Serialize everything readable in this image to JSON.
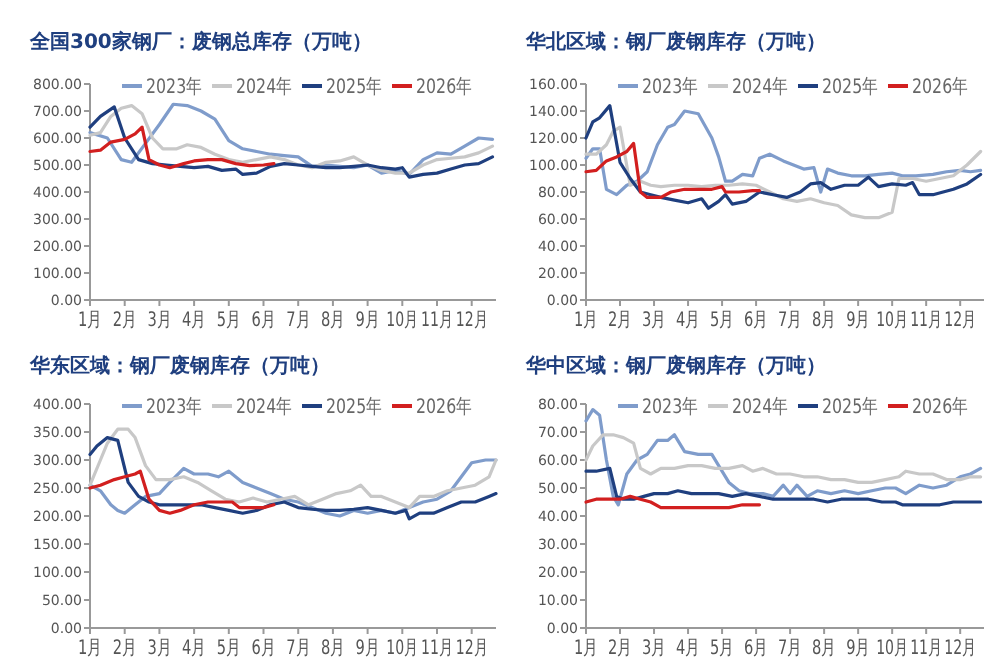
{
  "chart_data": [
    {
      "type": "line",
      "title": "全国300家钢厂：废钢总库存（万吨）",
      "legend": "top",
      "xlim": [
        1,
        12.7
      ],
      "ylim": [
        0,
        800
      ],
      "xticks": [
        {
          "value": 1,
          "label": "1月"
        },
        {
          "value": 2,
          "label": "2月"
        },
        {
          "value": 3,
          "label": "3月"
        },
        {
          "value": 4,
          "label": "4月"
        },
        {
          "value": 5,
          "label": "5月"
        },
        {
          "value": 6,
          "label": "6月"
        },
        {
          "value": 7,
          "label": "7月"
        },
        {
          "value": 8,
          "label": "8月"
        },
        {
          "value": 9,
          "label": "9月"
        },
        {
          "value": 10,
          "label": "10月"
        },
        {
          "value": 11,
          "label": "11月"
        },
        {
          "value": 12,
          "label": "12月"
        }
      ],
      "yticks": [
        {
          "value": 0,
          "label": "0.00"
        },
        {
          "value": 100,
          "label": "100.00"
        },
        {
          "value": 200,
          "label": "200.00"
        },
        {
          "value": 300,
          "label": "300.00"
        },
        {
          "value": 400,
          "label": "400.00"
        },
        {
          "value": 500,
          "label": "500.00"
        },
        {
          "value": 600,
          "label": "600.00"
        },
        {
          "value": 700,
          "label": "700.00"
        },
        {
          "value": 800,
          "label": "800.00"
        }
      ],
      "series": [
        {
          "name": "2023年",
          "color": "#7f9ccb",
          "x": [
            1,
            1.5,
            1.9,
            2.2,
            2.6,
            3.0,
            3.4,
            3.8,
            4.2,
            4.6,
            5.0,
            5.4,
            5.8,
            6.2,
            6.6,
            7.0,
            7.4,
            7.8,
            8.2,
            8.6,
            9.0,
            9.4,
            9.8,
            10.2,
            10.6,
            11.0,
            11.4,
            11.8,
            12.2,
            12.6
          ],
          "values": [
            620,
            600,
            520,
            510,
            580,
            650,
            725,
            720,
            700,
            670,
            590,
            560,
            550,
            540,
            535,
            530,
            495,
            500,
            495,
            490,
            500,
            470,
            480,
            465,
            520,
            545,
            540,
            570,
            600,
            595
          ]
        },
        {
          "name": "2024年",
          "color": "#c8c8c8",
          "x": [
            1,
            1.3,
            1.6,
            1.9,
            2.2,
            2.5,
            2.8,
            3.1,
            3.5,
            3.8,
            4.2,
            4.6,
            5.0,
            5.4,
            5.8,
            6.2,
            6.6,
            7.0,
            7.4,
            7.8,
            8.2,
            8.6,
            9.0,
            9.4,
            9.8,
            10.2,
            10.6,
            11.0,
            11.4,
            11.8,
            12.2,
            12.6
          ],
          "values": [
            610,
            620,
            680,
            710,
            720,
            690,
            600,
            560,
            560,
            575,
            565,
            540,
            520,
            510,
            520,
            530,
            520,
            500,
            490,
            510,
            515,
            530,
            500,
            480,
            470,
            470,
            500,
            520,
            525,
            530,
            545,
            570
          ]
        },
        {
          "name": "2025年",
          "color": "#1f3f7f",
          "x": [
            1,
            1.3,
            1.7,
            2.0,
            2.4,
            2.8,
            3.2,
            3.6,
            4.0,
            4.4,
            4.8,
            5.2,
            5.4,
            5.8,
            6.2,
            6.6,
            7.0,
            7.4,
            7.8,
            8.2,
            8.6,
            9.0,
            9.4,
            9.8,
            10.0,
            10.2,
            10.6,
            11.0,
            11.4,
            11.8,
            12.2,
            12.6
          ],
          "values": [
            640,
            680,
            715,
            600,
            520,
            505,
            500,
            495,
            490,
            495,
            480,
            485,
            465,
            470,
            495,
            505,
            500,
            495,
            490,
            490,
            495,
            500,
            490,
            485,
            490,
            455,
            465,
            470,
            485,
            500,
            505,
            530
          ]
        },
        {
          "name": "2026年",
          "color": "#d21f1f",
          "x": [
            1,
            1.3,
            1.6,
            2.0,
            2.3,
            2.5,
            2.7,
            3.0,
            3.3,
            3.7,
            4.0,
            4.4,
            4.8,
            5.2,
            5.6,
            6.0,
            6.3
          ],
          "values": [
            550,
            555,
            585,
            595,
            615,
            640,
            520,
            500,
            490,
            505,
            515,
            520,
            520,
            505,
            498,
            500,
            505
          ]
        }
      ]
    },
    {
      "type": "line",
      "title": "华北区域：钢厂废钢库存（万吨）",
      "legend": "top",
      "xlim": [
        1,
        12.7
      ],
      "ylim": [
        0,
        160
      ],
      "xticks": [
        {
          "value": 1,
          "label": "1月"
        },
        {
          "value": 2,
          "label": "2月"
        },
        {
          "value": 3,
          "label": "3月"
        },
        {
          "value": 4,
          "label": "4月"
        },
        {
          "value": 5,
          "label": "5月"
        },
        {
          "value": 6,
          "label": "6月"
        },
        {
          "value": 7,
          "label": "7月"
        },
        {
          "value": 8,
          "label": "8月"
        },
        {
          "value": 9,
          "label": "9月"
        },
        {
          "value": 10,
          "label": "10月"
        },
        {
          "value": 11,
          "label": "11月"
        },
        {
          "value": 12,
          "label": "12月"
        }
      ],
      "yticks": [
        {
          "value": 0,
          "label": "0.00"
        },
        {
          "value": 20,
          "label": "20.00"
        },
        {
          "value": 40,
          "label": "40.00"
        },
        {
          "value": 60,
          "label": "60.00"
        },
        {
          "value": 80,
          "label": "80.00"
        },
        {
          "value": 100,
          "label": "100.00"
        },
        {
          "value": 120,
          "label": "120.00"
        },
        {
          "value": 140,
          "label": "140.00"
        },
        {
          "value": 160,
          "label": "160.00"
        }
      ],
      "series": [
        {
          "name": "2023年",
          "color": "#7f9ccb",
          "x": [
            1,
            1.2,
            1.4,
            1.6,
            1.9,
            2.2,
            2.5,
            2.8,
            3.1,
            3.4,
            3.6,
            3.9,
            4.3,
            4.7,
            4.9,
            5.1,
            5.3,
            5.6,
            5.9,
            6.1,
            6.4,
            6.8,
            7.1,
            7.4,
            7.7,
            7.9,
            8.1,
            8.4,
            8.8,
            9.2,
            9.6,
            10.0,
            10.3,
            10.7,
            11.2,
            11.6,
            12.0,
            12.3,
            12.6
          ],
          "values": [
            105,
            112,
            112,
            82,
            78,
            85,
            88,
            95,
            115,
            128,
            130,
            140,
            138,
            120,
            106,
            88,
            88,
            93,
            92,
            105,
            108,
            103,
            100,
            97,
            98,
            80,
            97,
            94,
            92,
            92,
            93,
            94,
            92,
            92,
            93,
            95,
            96,
            95,
            96
          ]
        },
        {
          "name": "2024年",
          "color": "#c8c8c8",
          "x": [
            1,
            1.3,
            1.6,
            1.8,
            2.0,
            2.3,
            2.6,
            2.9,
            3.2,
            3.6,
            4.0,
            4.4,
            4.8,
            5.2,
            5.6,
            6.0,
            6.4,
            6.8,
            7.2,
            7.6,
            8.0,
            8.4,
            8.8,
            9.2,
            9.6,
            10.0,
            10.2,
            10.6,
            11.0,
            11.4,
            11.8,
            12.2,
            12.6
          ],
          "values": [
            108,
            108,
            115,
            125,
            128,
            85,
            88,
            85,
            84,
            85,
            85,
            84,
            85,
            85,
            86,
            85,
            80,
            75,
            73,
            75,
            72,
            70,
            63,
            61,
            61,
            65,
            90,
            90,
            88,
            90,
            92,
            100,
            110
          ]
        },
        {
          "name": "2025年",
          "color": "#1f3f7f",
          "x": [
            1,
            1.2,
            1.4,
            1.7,
            2.0,
            2.3,
            2.6,
            2.9,
            3.2,
            3.6,
            4.0,
            4.4,
            4.6,
            4.9,
            5.1,
            5.3,
            5.7,
            6.1,
            6.5,
            6.9,
            7.3,
            7.6,
            7.9,
            8.2,
            8.6,
            9.0,
            9.3,
            9.6,
            10.0,
            10.4,
            10.6,
            10.8,
            11.2,
            11.5,
            11.8,
            12.2,
            12.6
          ],
          "values": [
            120,
            132,
            135,
            144,
            102,
            90,
            80,
            78,
            76,
            74,
            72,
            75,
            68,
            73,
            78,
            71,
            73,
            80,
            78,
            76,
            80,
            86,
            87,
            82,
            85,
            85,
            91,
            84,
            86,
            85,
            87,
            78,
            78,
            80,
            82,
            86,
            93
          ]
        },
        {
          "name": "2026年",
          "color": "#d21f1f",
          "x": [
            1,
            1.3,
            1.6,
            1.9,
            2.2,
            2.4,
            2.6,
            2.8,
            3.2,
            3.5,
            3.9,
            4.3,
            4.7,
            5.0,
            5.1,
            5.5,
            5.9,
            6.1
          ],
          "values": [
            95,
            96,
            103,
            106,
            110,
            116,
            80,
            76,
            76,
            80,
            82,
            82,
            82,
            84,
            80,
            80,
            81,
            81
          ]
        }
      ]
    },
    {
      "type": "line",
      "title": "华东区域：钢厂废钢库存（万吨）",
      "legend": "top",
      "xlim": [
        1,
        12.7
      ],
      "ylim": [
        0,
        400
      ],
      "xticks": [
        {
          "value": 1,
          "label": "1月"
        },
        {
          "value": 2,
          "label": "2月"
        },
        {
          "value": 3,
          "label": "3月"
        },
        {
          "value": 4,
          "label": "4月"
        },
        {
          "value": 5,
          "label": "5月"
        },
        {
          "value": 6,
          "label": "6月"
        },
        {
          "value": 7,
          "label": "7月"
        },
        {
          "value": 8,
          "label": "8月"
        },
        {
          "value": 9,
          "label": "9月"
        },
        {
          "value": 10,
          "label": "10月"
        },
        {
          "value": 11,
          "label": "11月"
        },
        {
          "value": 12,
          "label": "12月"
        }
      ],
      "yticks": [
        {
          "value": 0,
          "label": "0.00"
        },
        {
          "value": 50,
          "label": "50.00"
        },
        {
          "value": 100,
          "label": "100.00"
        },
        {
          "value": 150,
          "label": "150.00"
        },
        {
          "value": 200,
          "label": "200.00"
        },
        {
          "value": 250,
          "label": "250.00"
        },
        {
          "value": 300,
          "label": "300.00"
        },
        {
          "value": 350,
          "label": "350.00"
        },
        {
          "value": 400,
          "label": "400.00"
        }
      ],
      "series": [
        {
          "name": "2023年",
          "color": "#7f9ccb",
          "x": [
            1,
            1.3,
            1.6,
            1.8,
            2.0,
            2.3,
            2.6,
            3.0,
            3.3,
            3.7,
            4.0,
            4.4,
            4.7,
            5.0,
            5.4,
            5.8,
            6.2,
            6.6,
            7.0,
            7.4,
            7.8,
            8.2,
            8.6,
            9.0,
            9.4,
            9.8,
            10.2,
            10.6,
            11.0,
            11.4,
            11.7,
            12.0,
            12.4,
            12.7
          ],
          "values": [
            255,
            245,
            220,
            210,
            205,
            220,
            235,
            240,
            260,
            285,
            275,
            275,
            270,
            280,
            260,
            250,
            240,
            230,
            225,
            215,
            205,
            200,
            210,
            205,
            210,
            205,
            215,
            225,
            230,
            245,
            270,
            295,
            300,
            300
          ]
        },
        {
          "name": "2024年",
          "color": "#c8c8c8",
          "x": [
            1,
            1.3,
            1.5,
            1.8,
            2.1,
            2.3,
            2.6,
            2.9,
            3.3,
            3.7,
            4.1,
            4.5,
            4.9,
            5.3,
            5.7,
            6.1,
            6.5,
            6.9,
            7.3,
            7.7,
            8.1,
            8.5,
            8.8,
            9.1,
            9.4,
            9.8,
            10.2,
            10.5,
            10.9,
            11.3,
            11.7,
            12.1,
            12.5,
            12.7
          ],
          "values": [
            255,
            300,
            330,
            355,
            355,
            340,
            290,
            265,
            265,
            270,
            260,
            245,
            230,
            225,
            232,
            225,
            230,
            235,
            220,
            230,
            240,
            245,
            255,
            235,
            235,
            225,
            215,
            235,
            235,
            245,
            250,
            255,
            270,
            300
          ]
        },
        {
          "name": "2025年",
          "color": "#1f3f7f",
          "x": [
            1,
            1.2,
            1.5,
            1.8,
            2.1,
            2.4,
            2.7,
            3.0,
            3.4,
            3.8,
            4.2,
            4.6,
            5.0,
            5.4,
            5.8,
            6.2,
            6.6,
            7.0,
            7.4,
            7.8,
            8.2,
            8.6,
            9.0,
            9.4,
            9.8,
            10.1,
            10.2,
            10.5,
            10.9,
            11.3,
            11.7,
            12.1,
            12.5,
            12.7
          ],
          "values": [
            310,
            325,
            340,
            335,
            260,
            235,
            225,
            220,
            220,
            220,
            220,
            215,
            210,
            205,
            210,
            220,
            225,
            215,
            212,
            210,
            210,
            212,
            215,
            210,
            205,
            210,
            195,
            205,
            205,
            215,
            225,
            225,
            235,
            240
          ]
        },
        {
          "name": "2026年",
          "color": "#d21f1f",
          "x": [
            1,
            1.3,
            1.7,
            2.0,
            2.3,
            2.45,
            2.7,
            3.0,
            3.3,
            3.6,
            4.0,
            4.4,
            4.8,
            5.1,
            5.3,
            5.7,
            6.0,
            6.3
          ],
          "values": [
            250,
            255,
            265,
            270,
            275,
            280,
            230,
            210,
            205,
            210,
            220,
            225,
            225,
            225,
            215,
            215,
            215,
            220
          ]
        }
      ]
    },
    {
      "type": "line",
      "title": "华中区域：钢厂废钢库存（万吨）",
      "legend": "top",
      "xlim": [
        1,
        12.7
      ],
      "ylim": [
        0,
        80
      ],
      "xticks": [
        {
          "value": 1,
          "label": "1月"
        },
        {
          "value": 2,
          "label": "2月"
        },
        {
          "value": 3,
          "label": "3月"
        },
        {
          "value": 4,
          "label": "4月"
        },
        {
          "value": 5,
          "label": "5月"
        },
        {
          "value": 6,
          "label": "6月"
        },
        {
          "value": 7,
          "label": "7月"
        },
        {
          "value": 8,
          "label": "8月"
        },
        {
          "value": 9,
          "label": "9月"
        },
        {
          "value": 10,
          "label": "10月"
        },
        {
          "value": 11,
          "label": "11月"
        },
        {
          "value": 12,
          "label": "12月"
        }
      ],
      "yticks": [
        {
          "value": 0,
          "label": "0.00"
        },
        {
          "value": 10,
          "label": "10.00"
        },
        {
          "value": 20,
          "label": "20.00"
        },
        {
          "value": 30,
          "label": "30.00"
        },
        {
          "value": 40,
          "label": "40.00"
        },
        {
          "value": 50,
          "label": "50.00"
        },
        {
          "value": 60,
          "label": "60.00"
        },
        {
          "value": 70,
          "label": "70.00"
        },
        {
          "value": 80,
          "label": "80.00"
        }
      ],
      "series": [
        {
          "name": "2023年",
          "color": "#7f9ccb",
          "x": [
            1,
            1.2,
            1.4,
            1.6,
            1.8,
            1.95,
            2.2,
            2.5,
            2.8,
            3.1,
            3.4,
            3.6,
            3.9,
            4.3,
            4.7,
            4.9,
            5.2,
            5.5,
            5.8,
            6.2,
            6.5,
            6.8,
            7.0,
            7.2,
            7.5,
            7.8,
            8.2,
            8.6,
            9.0,
            9.4,
            9.8,
            10.1,
            10.4,
            10.8,
            11.2,
            11.6,
            12.0,
            12.3,
            12.6
          ],
          "values": [
            74,
            78,
            76,
            60,
            47,
            44,
            55,
            60,
            62,
            67,
            67,
            69,
            63,
            62,
            62,
            58,
            52,
            49,
            48,
            48,
            47,
            51,
            48,
            51,
            47,
            49,
            48,
            49,
            48,
            49,
            50,
            50,
            48,
            51,
            50,
            51,
            54,
            55,
            57
          ]
        },
        {
          "name": "2024年",
          "color": "#c8c8c8",
          "x": [
            1,
            1.2,
            1.5,
            1.8,
            2.1,
            2.4,
            2.6,
            2.9,
            3.2,
            3.6,
            4.0,
            4.4,
            4.8,
            5.2,
            5.6,
            5.9,
            6.2,
            6.6,
            7.0,
            7.4,
            7.8,
            8.2,
            8.6,
            9.0,
            9.4,
            9.8,
            10.2,
            10.4,
            10.8,
            11.2,
            11.6,
            12.0,
            12.3,
            12.6
          ],
          "values": [
            60,
            65,
            69,
            69,
            68,
            66,
            57,
            55,
            57,
            57,
            58,
            58,
            57,
            57,
            58,
            56,
            57,
            55,
            55,
            54,
            54,
            53,
            53,
            52,
            52,
            53,
            54,
            56,
            55,
            55,
            53,
            53,
            54,
            54
          ]
        },
        {
          "name": "2025年",
          "color": "#1f3f7f",
          "x": [
            1,
            1.3,
            1.7,
            1.9,
            2.1,
            2.4,
            2.7,
            3.0,
            3.4,
            3.7,
            4.1,
            4.5,
            4.9,
            5.3,
            5.7,
            6.1,
            6.5,
            6.9,
            7.3,
            7.7,
            8.1,
            8.5,
            8.9,
            9.3,
            9.7,
            10.1,
            10.3,
            10.6,
            11.0,
            11.4,
            11.8,
            12.2,
            12.6
          ],
          "values": [
            56,
            56,
            57,
            47,
            46,
            46,
            47,
            48,
            48,
            49,
            48,
            48,
            48,
            47,
            48,
            47,
            46,
            46,
            46,
            46,
            45,
            46,
            46,
            46,
            45,
            45,
            44,
            44,
            44,
            44,
            45,
            45,
            45
          ]
        },
        {
          "name": "2026年",
          "color": "#d21f1f",
          "x": [
            1,
            1.3,
            1.6,
            2.0,
            2.3,
            2.6,
            2.9,
            3.2,
            3.6,
            4.0,
            4.4,
            4.8,
            5.2,
            5.6,
            6.1
          ],
          "values": [
            45,
            46,
            46,
            46,
            47,
            46,
            45,
            43,
            43,
            43,
            43,
            43,
            43,
            44,
            44
          ]
        }
      ]
    }
  ]
}
